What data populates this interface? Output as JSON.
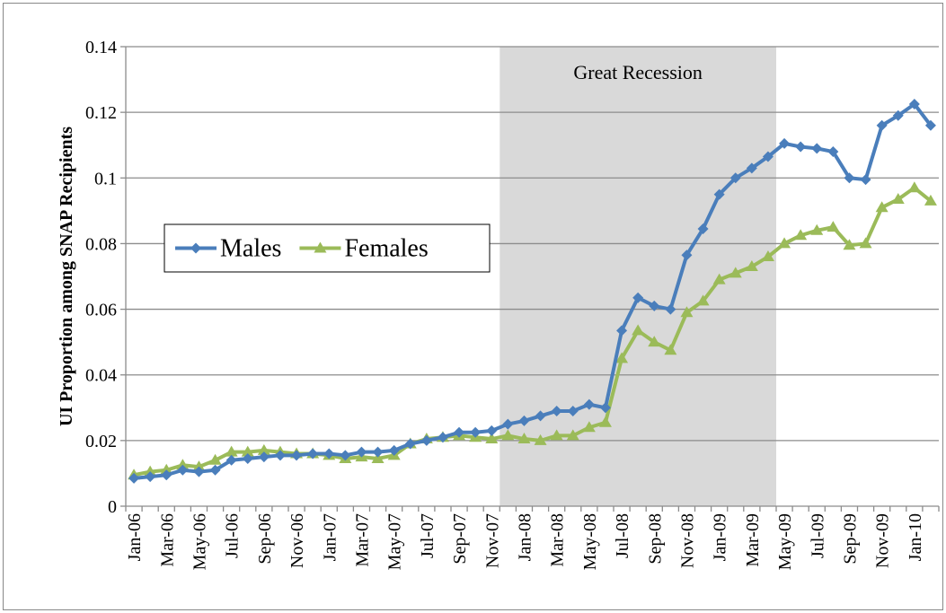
{
  "chart_data": {
    "type": "line",
    "ylabel": "UI Proportion among SNAP Recipients",
    "categories": [
      "Jan-06",
      null,
      "Mar-06",
      null,
      "May-06",
      null,
      "Jul-06",
      null,
      "Sep-06",
      null,
      "Nov-06",
      null,
      "Jan-07",
      null,
      "Mar-07",
      null,
      "May-07",
      null,
      "Jul-07",
      null,
      "Sep-07",
      null,
      "Nov-07",
      null,
      "Jan-08",
      null,
      "Mar-08",
      null,
      "May-08",
      null,
      "Jul-08",
      null,
      "Sep-08",
      null,
      "Nov-08",
      null,
      "Jan-09",
      null,
      "Mar-09",
      null,
      "May-09",
      null,
      "Jul-09",
      null,
      "Sep-09",
      null,
      "Nov-09",
      null,
      "Jan-10",
      null
    ],
    "series": [
      {
        "name": "Males",
        "color": "#4a7ebb",
        "marker": "diamond",
        "values": [
          0.0085,
          0.009,
          0.0095,
          0.011,
          0.0105,
          0.011,
          0.014,
          0.0145,
          0.015,
          0.0155,
          0.0155,
          0.016,
          0.016,
          0.0155,
          0.0165,
          0.0165,
          0.017,
          0.019,
          0.02,
          0.021,
          0.0225,
          0.0225,
          0.023,
          0.025,
          0.026,
          0.0275,
          0.029,
          0.029,
          0.031,
          0.03,
          0.0535,
          0.0635,
          0.061,
          0.06,
          0.0765,
          0.0845,
          0.095,
          0.1,
          0.103,
          0.1065,
          0.1105,
          0.1095,
          0.109,
          0.108,
          0.1,
          0.0995,
          0.116,
          0.119,
          0.1225,
          0.116
        ]
      },
      {
        "name": "Females",
        "color": "#9bbb59",
        "marker": "triangle",
        "values": [
          0.0095,
          0.0105,
          0.011,
          0.0125,
          0.012,
          0.014,
          0.0165,
          0.0165,
          0.017,
          0.0165,
          0.016,
          0.016,
          0.0155,
          0.0145,
          0.015,
          0.0145,
          0.0155,
          0.019,
          0.0205,
          0.021,
          0.0215,
          0.021,
          0.0205,
          0.0215,
          0.0205,
          0.02,
          0.0215,
          0.0215,
          0.024,
          0.0255,
          0.045,
          0.0535,
          0.05,
          0.0475,
          0.059,
          0.0625,
          0.069,
          0.071,
          0.073,
          0.076,
          0.08,
          0.0825,
          0.084,
          0.085,
          0.0795,
          0.08,
          0.091,
          0.0935,
          0.097,
          0.093
        ]
      }
    ],
    "shade": {
      "text": "Great Recession",
      "from_index": 23,
      "to_index": 39,
      "color": "#d9d9d9"
    },
    "ylim": [
      0,
      0.14
    ],
    "yticks": [
      0,
      0.02,
      0.04,
      0.06,
      0.08,
      0.1,
      0.12,
      0.14
    ],
    "grid": true,
    "legend": "left"
  }
}
